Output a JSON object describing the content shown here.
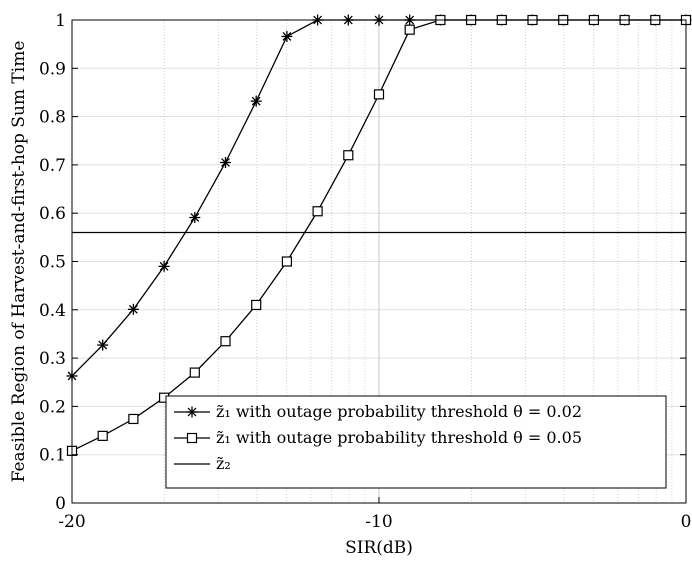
{
  "chart_data": {
    "type": "line",
    "xlabel": "SIR(dB)",
    "ylabel": "Feasible Region of Harvest-and-first-hop Sum Time",
    "xlim": [
      -20,
      0
    ],
    "ylim": [
      0,
      1
    ],
    "x_scale": "log-style minor grid",
    "grid": true,
    "legend_position": "bottom-right",
    "x_ticks": [
      {
        "value": -20,
        "label": "-20"
      },
      {
        "value": -10,
        "label": "-10"
      },
      {
        "value": 0,
        "label": "0"
      }
    ],
    "y_ticks": [
      {
        "value": 0,
        "label": "0"
      },
      {
        "value": 0.1,
        "label": "0.1"
      },
      {
        "value": 0.2,
        "label": "0.2"
      },
      {
        "value": 0.3,
        "label": "0.3"
      },
      {
        "value": 0.4,
        "label": "0.4"
      },
      {
        "value": 0.5,
        "label": "0.5"
      },
      {
        "value": 0.6,
        "label": "0.6"
      },
      {
        "value": 0.7,
        "label": "0.7"
      },
      {
        "value": 0.8,
        "label": "0.8"
      },
      {
        "value": 0.9,
        "label": "0.9"
      },
      {
        "value": 1,
        "label": "1"
      }
    ],
    "series": [
      {
        "name": "z̃₁ with outage probability threshold θ = 0.02",
        "marker": "asterisk",
        "x": [
          -20,
          -19,
          -18,
          -17,
          -16,
          -15,
          -14,
          -13,
          -12,
          -11,
          -10,
          -9,
          -8,
          -7,
          -6,
          -5,
          -4,
          -3,
          -2,
          -1,
          0
        ],
        "y": [
          0.263,
          0.327,
          0.401,
          0.49,
          0.591,
          0.705,
          0.832,
          0.966,
          1.0,
          1.0,
          1.0,
          1.0,
          1.0,
          1.0,
          1.0,
          1.0,
          1.0,
          1.0,
          1.0,
          1.0,
          1.0
        ]
      },
      {
        "name": "z̃₁ with outage probability threshold θ = 0.05",
        "marker": "square",
        "x": [
          -20,
          -19,
          -18,
          -17,
          -16,
          -15,
          -14,
          -13,
          -12,
          -11,
          -10,
          -9,
          -8,
          -7,
          -6,
          -5,
          -4,
          -3,
          -2,
          -1,
          0
        ],
        "y": [
          0.108,
          0.139,
          0.174,
          0.218,
          0.27,
          0.335,
          0.41,
          0.5,
          0.604,
          0.72,
          0.846,
          0.98,
          1.0,
          1.0,
          1.0,
          1.0,
          1.0,
          1.0,
          1.0,
          1.0,
          1.0
        ]
      },
      {
        "name": "z̃₂",
        "marker": "none",
        "x": [
          -20,
          0
        ],
        "y": [
          0.56,
          0.56
        ]
      }
    ]
  }
}
